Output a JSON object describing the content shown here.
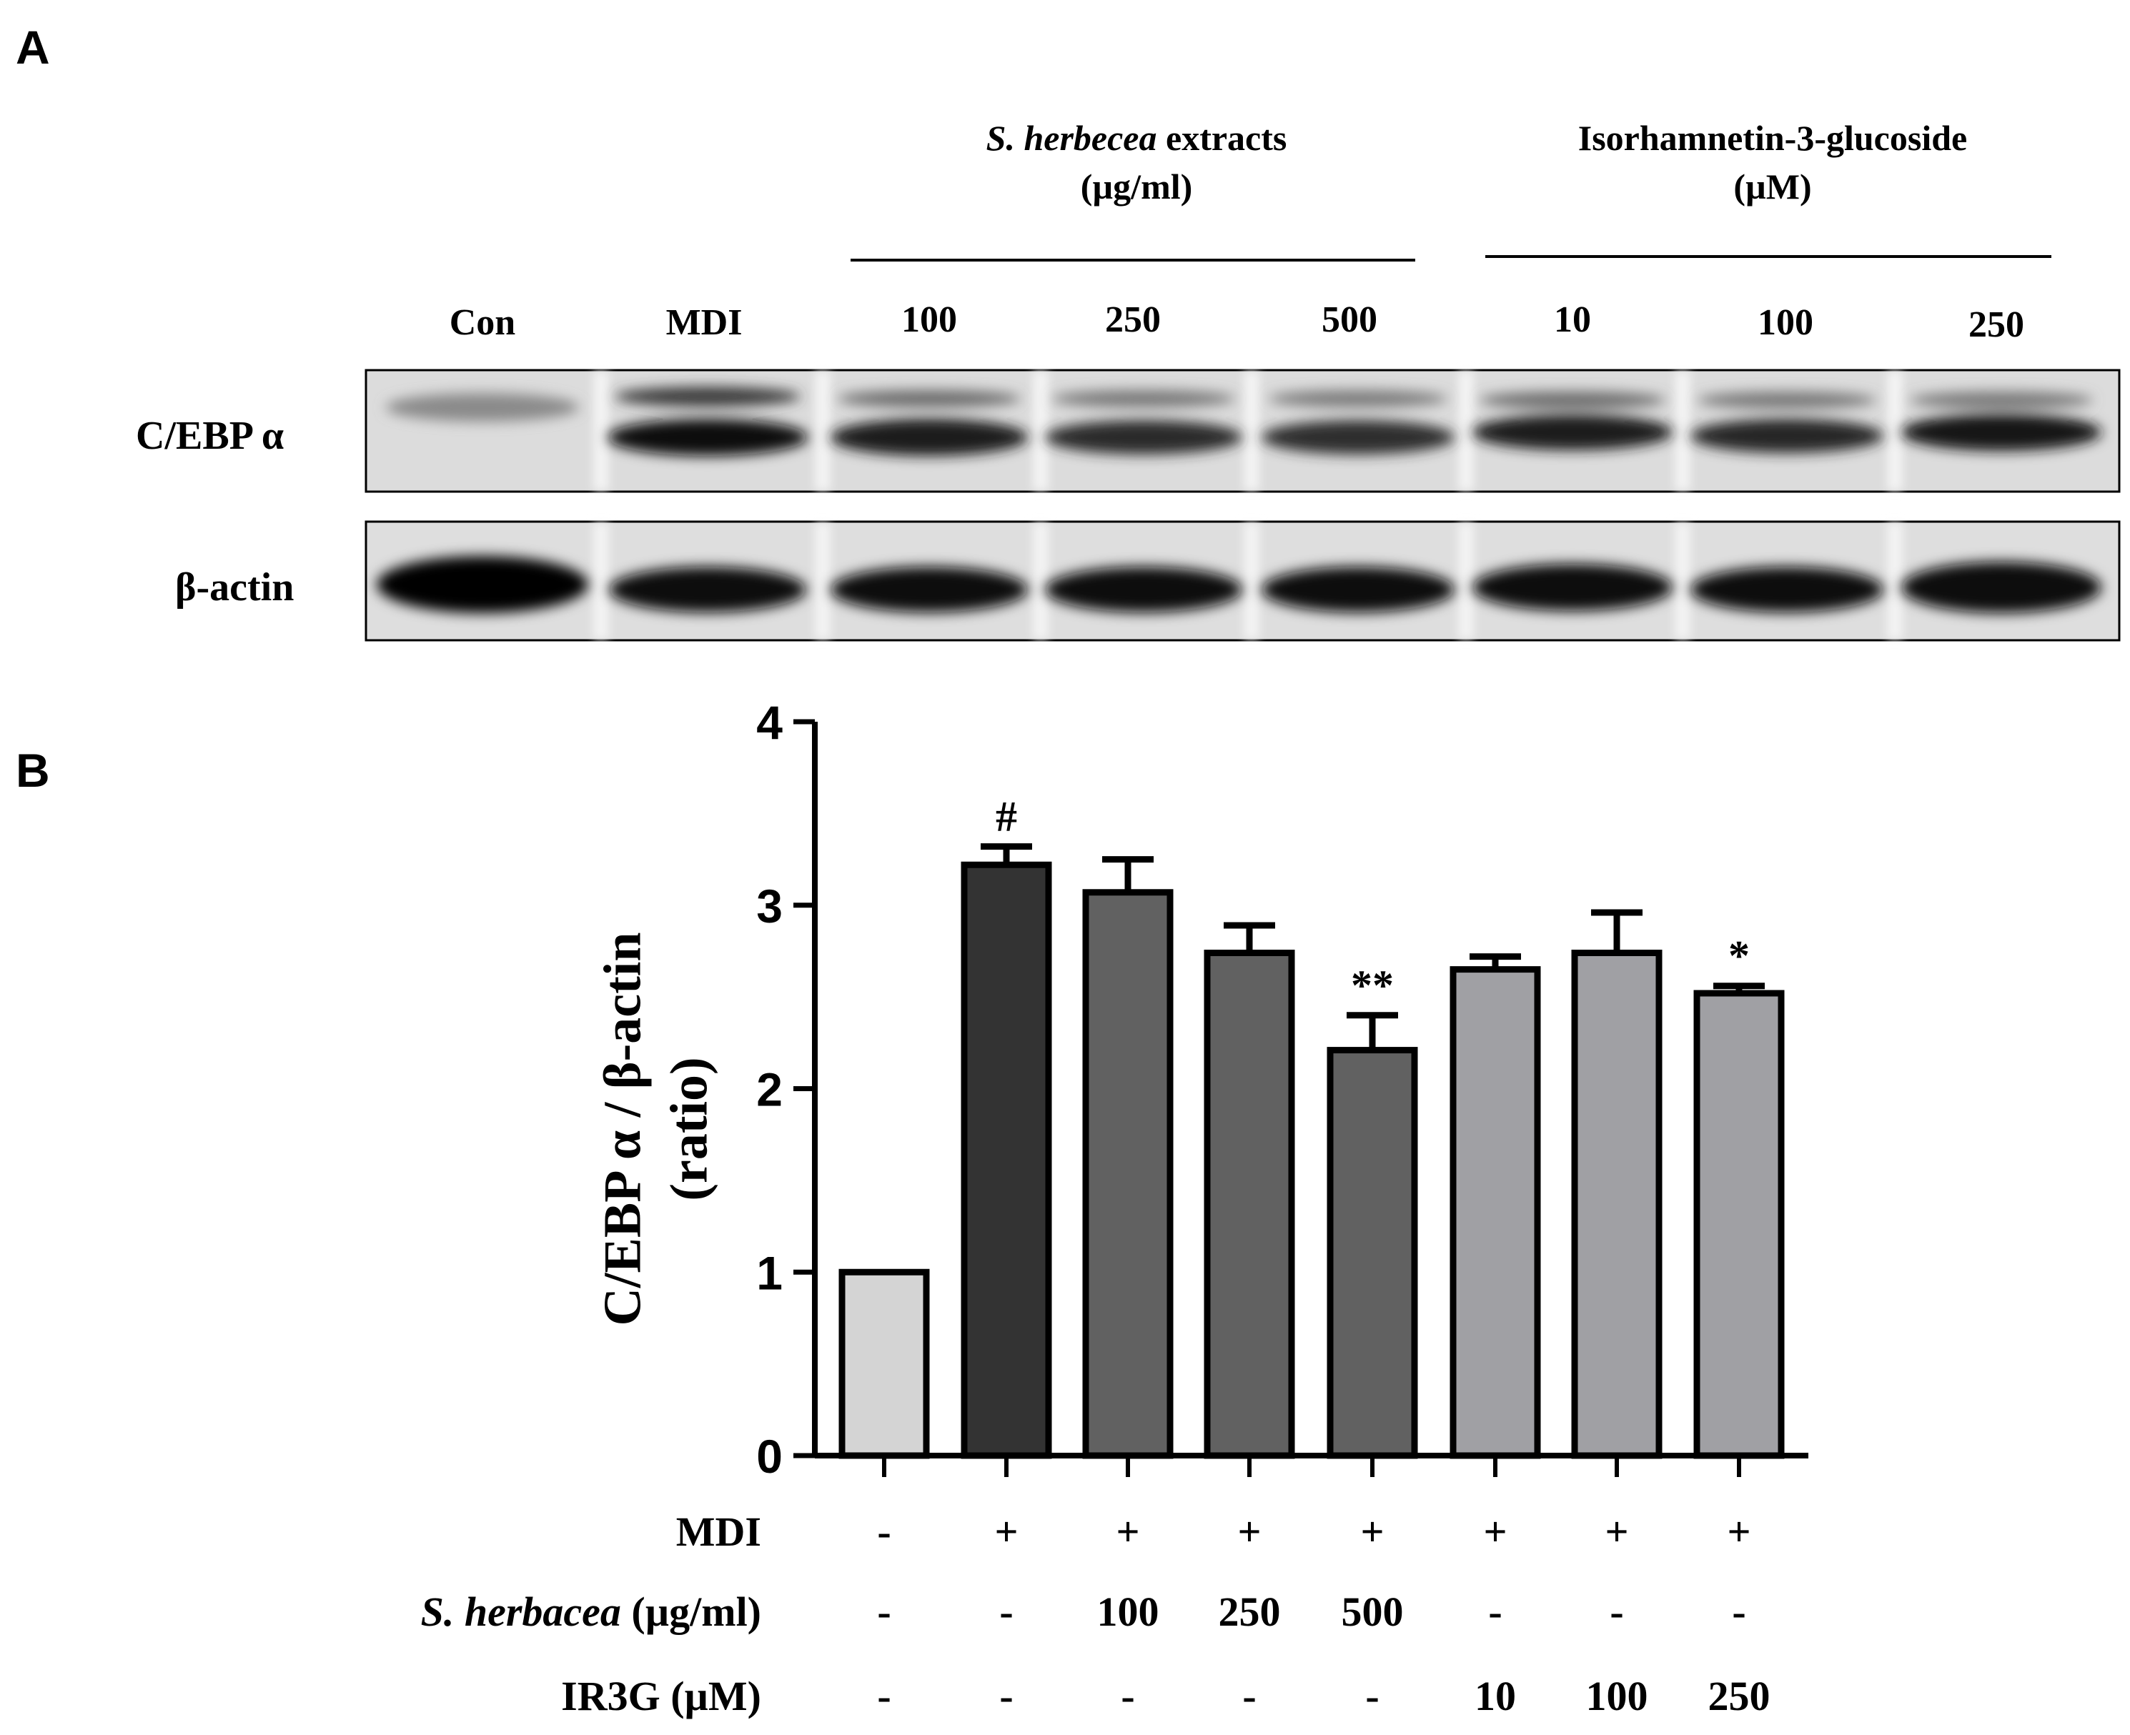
{
  "panels": {
    "a": "A",
    "b": "B"
  },
  "blot": {
    "groups": [
      {
        "title_italic": "S. herbecea",
        "title_rest": " extracts",
        "unit": "(µg/ml)"
      },
      {
        "title_italic": "",
        "title_rest": "Isorhamnetin-3-glucoside",
        "unit": "(µM)"
      }
    ],
    "lanes": [
      "Con",
      "MDI",
      "100",
      "250",
      "500",
      "10",
      "100",
      "250"
    ],
    "proteins": [
      "C/EBP α",
      "β-actin"
    ]
  },
  "chart_data": {
    "type": "bar",
    "categories": [
      "",
      "",
      "",
      "",
      "",
      "",
      "",
      ""
    ],
    "values": [
      1.0,
      3.22,
      3.07,
      2.74,
      2.21,
      2.65,
      2.74,
      2.52
    ],
    "errors": [
      0.0,
      0.1,
      0.18,
      0.15,
      0.19,
      0.07,
      0.22,
      0.04
    ],
    "annotations": [
      "",
      "#",
      "",
      "",
      "**",
      "",
      "",
      "*"
    ],
    "bar_colors": [
      "#d4d4d4",
      "#333333",
      "#616161",
      "#616161",
      "#616161",
      "#a0a0a4",
      "#a0a0a4",
      "#a0a0a4"
    ],
    "ylabel_line1": "C/EBP α / β-actin",
    "ylabel_line2": "(ratio)",
    "ylim": [
      0,
      4
    ],
    "yticks": [
      "0",
      "1",
      "2",
      "3",
      "4"
    ]
  },
  "treatments": [
    {
      "label_italic": "",
      "label_rest": "MDI",
      "values": [
        "-",
        "+",
        "+",
        "+",
        "+",
        "+",
        "+",
        "+"
      ]
    },
    {
      "label_italic": "S. herbacea",
      "label_rest": " (µg/ml)",
      "values": [
        "-",
        "-",
        "100",
        "250",
        "500",
        "-",
        "-",
        "-"
      ]
    },
    {
      "label_italic": "",
      "label_rest": "IR3G (µM)",
      "values": [
        "-",
        "-",
        "-",
        "-",
        "-",
        "10",
        "100",
        "250"
      ]
    }
  ]
}
